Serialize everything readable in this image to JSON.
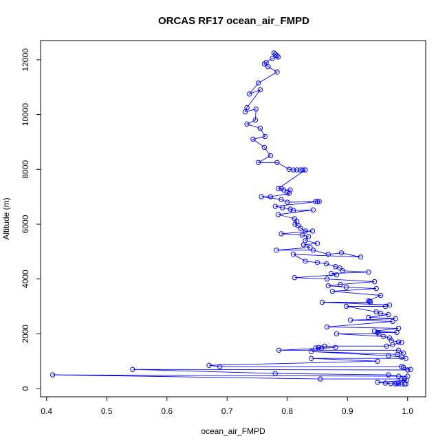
{
  "chart_data": {
    "type": "line",
    "title": "ORCAS RF17 ocean_air_FMPD",
    "xlabel": "ocean_air_FMPD",
    "ylabel": "Altitude (m)",
    "xlim": [
      0.39,
      1.03
    ],
    "ylim": [
      -300,
      12700
    ],
    "x_ticks": [
      0.4,
      0.5,
      0.6,
      0.7,
      0.8,
      0.9,
      1.0
    ],
    "x_tick_labels": [
      "0.4",
      "0.5",
      "0.6",
      "0.7",
      "0.8",
      "0.9",
      "1.0"
    ],
    "y_ticks": [
      0,
      2000,
      4000,
      6000,
      8000,
      10000,
      12000
    ],
    "y_tick_labels": [
      "0",
      "2000",
      "4000",
      "6000",
      "8000",
      "10000",
      "12000"
    ],
    "series": [
      {
        "color": "#0000ff",
        "marker": "open-circle",
        "points": [
          [
            0.778,
            12250
          ],
          [
            0.78,
            12200
          ],
          [
            0.783,
            12150
          ],
          [
            0.785,
            12100
          ],
          [
            0.775,
            12050
          ],
          [
            0.765,
            11900
          ],
          [
            0.762,
            11850
          ],
          [
            0.768,
            11750
          ],
          [
            0.783,
            11550
          ],
          [
            0.752,
            11150
          ],
          [
            0.737,
            10750
          ],
          [
            0.755,
            10900
          ],
          [
            0.733,
            10250
          ],
          [
            0.73,
            10100
          ],
          [
            0.748,
            10200
          ],
          [
            0.747,
            9800
          ],
          [
            0.733,
            9650
          ],
          [
            0.755,
            9500
          ],
          [
            0.763,
            9200
          ],
          [
            0.743,
            9100
          ],
          [
            0.762,
            8800
          ],
          [
            0.772,
            8500
          ],
          [
            0.752,
            8250
          ],
          [
            0.783,
            8250
          ],
          [
            0.803,
            8000
          ],
          [
            0.81,
            7980
          ],
          [
            0.816,
            7980
          ],
          [
            0.822,
            7980
          ],
          [
            0.826,
            7980
          ],
          [
            0.83,
            7980
          ],
          [
            0.785,
            7300
          ],
          [
            0.79,
            7300
          ],
          [
            0.794,
            7250
          ],
          [
            0.805,
            7250
          ],
          [
            0.8,
            7150
          ],
          [
            0.803,
            7120
          ],
          [
            0.772,
            7000
          ],
          [
            0.757,
            7000
          ],
          [
            0.79,
            6900
          ],
          [
            0.8,
            6800
          ],
          [
            0.847,
            6820
          ],
          [
            0.85,
            6820
          ],
          [
            0.853,
            6830
          ],
          [
            0.78,
            6650
          ],
          [
            0.792,
            6600
          ],
          [
            0.805,
            6550
          ],
          [
            0.81,
            6500
          ],
          [
            0.843,
            6520
          ],
          [
            0.785,
            6350
          ],
          [
            0.812,
            6200
          ],
          [
            0.816,
            6100
          ],
          [
            0.813,
            6000
          ],
          [
            0.818,
            5950
          ],
          [
            0.822,
            5850
          ],
          [
            0.83,
            5750
          ],
          [
            0.842,
            5750
          ],
          [
            0.79,
            5650
          ],
          [
            0.825,
            5600
          ],
          [
            0.835,
            5550
          ],
          [
            0.83,
            5400
          ],
          [
            0.85,
            5300
          ],
          [
            0.827,
            5250
          ],
          [
            0.838,
            5150
          ],
          [
            0.782,
            5050
          ],
          [
            0.843,
            5050
          ],
          [
            0.868,
            4900
          ],
          [
            0.89,
            4950
          ],
          [
            0.922,
            4800
          ],
          [
            0.81,
            4900
          ],
          [
            0.83,
            4650
          ],
          [
            0.85,
            4600
          ],
          [
            0.865,
            4550
          ],
          [
            0.88,
            4450
          ],
          [
            0.887,
            4400
          ],
          [
            0.892,
            4300
          ],
          [
            0.935,
            4250
          ],
          [
            0.873,
            4200
          ],
          [
            0.882,
            4150
          ],
          [
            0.812,
            4050
          ],
          [
            0.866,
            4000
          ],
          [
            0.945,
            3900
          ],
          [
            0.888,
            3800
          ],
          [
            0.868,
            3750
          ],
          [
            0.898,
            3700
          ],
          [
            0.948,
            3650
          ],
          [
            0.875,
            3550
          ],
          [
            0.955,
            3400
          ],
          [
            0.935,
            3200
          ],
          [
            0.937,
            3180
          ],
          [
            0.938,
            3150
          ],
          [
            0.858,
            3150
          ],
          [
            0.97,
            3050
          ],
          [
            0.963,
            3000
          ],
          [
            0.898,
            3000
          ],
          [
            0.948,
            2800
          ],
          [
            0.955,
            2750
          ],
          [
            0.968,
            2700
          ],
          [
            0.935,
            2600
          ],
          [
            0.98,
            2550
          ],
          [
            0.905,
            2500
          ],
          [
            0.975,
            2450
          ],
          [
            0.866,
            2250
          ],
          [
            0.985,
            2200
          ],
          [
            0.945,
            2100
          ],
          [
            0.982,
            2050
          ],
          [
            0.95,
            2050
          ],
          [
            0.952,
            2000
          ],
          [
            0.882,
            2000
          ],
          [
            0.96,
            1900
          ],
          [
            0.97,
            1850
          ],
          [
            0.973,
            1750
          ],
          [
            0.985,
            1700
          ],
          [
            0.99,
            1680
          ],
          [
            0.975,
            1600
          ],
          [
            0.965,
            1550
          ],
          [
            0.862,
            1550
          ],
          [
            0.852,
            1500
          ],
          [
            0.847,
            1480
          ],
          [
            0.857,
            1480
          ],
          [
            0.88,
            1500
          ],
          [
            0.786,
            1400
          ],
          [
            0.985,
            1400
          ],
          [
            0.993,
            1300
          ],
          [
            0.983,
            1250
          ],
          [
            0.84,
            1350
          ],
          [
            0.968,
            1200
          ],
          [
            0.99,
            1150
          ],
          [
            0.997,
            1100
          ],
          [
            0.84,
            1100
          ],
          [
            0.95,
            1000
          ],
          [
            0.67,
            850
          ],
          [
            0.688,
            800
          ],
          [
            0.99,
            800
          ],
          [
            0.993,
            780
          ],
          [
            1.005,
            700
          ],
          [
            1.0,
            680
          ],
          [
            0.543,
            700
          ],
          [
            0.78,
            550
          ],
          [
            0.968,
            500
          ],
          [
            0.985,
            450
          ],
          [
            1.0,
            450
          ],
          [
            0.41,
            500
          ],
          [
            0.855,
            350
          ],
          [
            0.99,
            350
          ],
          [
            0.995,
            350
          ],
          [
            0.998,
            300
          ],
          [
            0.95,
            230
          ],
          [
            0.963,
            200
          ],
          [
            0.972,
            180
          ],
          [
            0.985,
            180
          ],
          [
            0.99,
            170
          ],
          [
            0.995,
            170
          ],
          [
            0.997,
            170
          ],
          [
            0.98,
            170
          ],
          [
            0.982,
            200
          ]
        ]
      }
    ]
  }
}
